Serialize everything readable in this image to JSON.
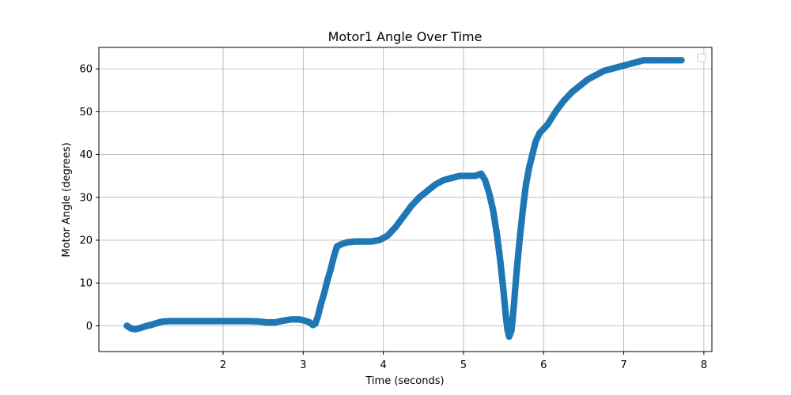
{
  "chart_data": {
    "type": "scatter",
    "title": "Motor1 Angle Over Time",
    "xlabel": "Time (seconds)",
    "ylabel": "Motor Angle (degrees)",
    "xlim": [
      0.45,
      8.1
    ],
    "ylim": [
      -6,
      65
    ],
    "x_ticks": [
      2,
      3,
      4,
      5,
      6,
      7,
      8
    ],
    "y_ticks": [
      0,
      10,
      20,
      30,
      40,
      50,
      60
    ],
    "grid": true,
    "legend_placement": "top-right",
    "marker_color": "#1f77b4",
    "series": [
      {
        "points": [
          [
            0.8,
            0.0
          ],
          [
            0.85,
            -0.6
          ],
          [
            0.9,
            -0.8
          ],
          [
            0.95,
            -0.6
          ],
          [
            1.0,
            -0.3
          ],
          [
            1.05,
            0.0
          ],
          [
            1.1,
            0.2
          ],
          [
            1.15,
            0.5
          ],
          [
            1.2,
            0.8
          ],
          [
            1.25,
            1.0
          ],
          [
            1.35,
            1.1
          ],
          [
            1.5,
            1.1
          ],
          [
            1.7,
            1.1
          ],
          [
            1.9,
            1.1
          ],
          [
            2.1,
            1.1
          ],
          [
            2.3,
            1.1
          ],
          [
            2.45,
            1.0
          ],
          [
            2.55,
            0.8
          ],
          [
            2.65,
            0.8
          ],
          [
            2.75,
            1.2
          ],
          [
            2.85,
            1.5
          ],
          [
            2.95,
            1.5
          ],
          [
            3.02,
            1.2
          ],
          [
            3.08,
            0.8
          ],
          [
            3.12,
            0.2
          ],
          [
            3.15,
            0.5
          ],
          [
            3.18,
            2.0
          ],
          [
            3.22,
            5.0
          ],
          [
            3.26,
            7.5
          ],
          [
            3.3,
            10.5
          ],
          [
            3.34,
            13.0
          ],
          [
            3.38,
            16.0
          ],
          [
            3.42,
            18.5
          ],
          [
            3.47,
            19.0
          ],
          [
            3.55,
            19.5
          ],
          [
            3.65,
            19.7
          ],
          [
            3.75,
            19.7
          ],
          [
            3.85,
            19.7
          ],
          [
            3.95,
            20.0
          ],
          [
            4.05,
            21.0
          ],
          [
            4.15,
            23.0
          ],
          [
            4.25,
            25.5
          ],
          [
            4.35,
            28.0
          ],
          [
            4.45,
            30.0
          ],
          [
            4.55,
            31.5
          ],
          [
            4.65,
            33.0
          ],
          [
            4.75,
            34.0
          ],
          [
            4.85,
            34.5
          ],
          [
            4.95,
            35.0
          ],
          [
            5.05,
            35.0
          ],
          [
            5.15,
            35.0
          ],
          [
            5.22,
            35.5
          ],
          [
            5.27,
            34.0
          ],
          [
            5.32,
            31.0
          ],
          [
            5.37,
            27.0
          ],
          [
            5.42,
            21.0
          ],
          [
            5.46,
            15.0
          ],
          [
            5.5,
            8.0
          ],
          [
            5.53,
            2.0
          ],
          [
            5.55,
            -1.0
          ],
          [
            5.57,
            -2.5
          ],
          [
            5.6,
            -1.0
          ],
          [
            5.63,
            5.0
          ],
          [
            5.66,
            12.0
          ],
          [
            5.7,
            20.0
          ],
          [
            5.74,
            27.0
          ],
          [
            5.78,
            33.0
          ],
          [
            5.82,
            37.0
          ],
          [
            5.86,
            40.0
          ],
          [
            5.9,
            43.0
          ],
          [
            5.95,
            45.0
          ],
          [
            6.05,
            47.0
          ],
          [
            6.15,
            50.0
          ],
          [
            6.25,
            52.5
          ],
          [
            6.35,
            54.5
          ],
          [
            6.45,
            56.0
          ],
          [
            6.55,
            57.5
          ],
          [
            6.65,
            58.5
          ],
          [
            6.75,
            59.5
          ],
          [
            6.85,
            60.0
          ],
          [
            6.95,
            60.5
          ],
          [
            7.05,
            61.0
          ],
          [
            7.15,
            61.5
          ],
          [
            7.25,
            62.0
          ],
          [
            7.35,
            62.0
          ],
          [
            7.5,
            62.0
          ],
          [
            7.65,
            62.0
          ],
          [
            7.72,
            62.0
          ]
        ]
      }
    ]
  }
}
